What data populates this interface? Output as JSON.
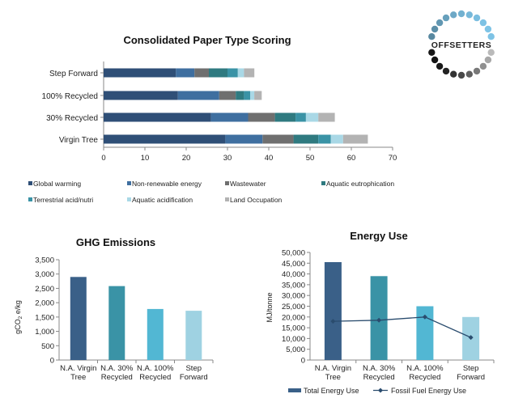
{
  "logo": {
    "text": "OFFSETTERS"
  },
  "chart_data": [
    {
      "type": "bar",
      "orientation": "horizontal",
      "stacked": true,
      "title": "Consolidated Paper Type Scoring",
      "categories": [
        "Step Forward",
        "100% Recycled",
        "30% Recycled",
        "Virgin Tree"
      ],
      "xlim": [
        0,
        70
      ],
      "xticks": [
        "0",
        "10",
        "20",
        "30",
        "40",
        "50",
        "60",
        "70"
      ],
      "grid": false,
      "legend": "bottom",
      "series": [
        {
          "name": "Global warming",
          "color": "#2f4f77",
          "values": [
            17.5,
            18,
            26,
            29.5
          ]
        },
        {
          "name": "Non-renewable energy",
          "color": "#3f6fa0",
          "values": [
            4.5,
            10,
            9,
            9
          ]
        },
        {
          "name": "Wastewater",
          "color": "#6f6f6f",
          "values": [
            3.5,
            4,
            6.5,
            7.5
          ]
        },
        {
          "name": "Aquatic eutrophication",
          "color": "#2f7a80",
          "values": [
            4.5,
            2,
            5,
            6
          ]
        },
        {
          "name": "Terrestrial acid/nutri",
          "color": "#3a93a6",
          "values": [
            2.5,
            1.5,
            2.5,
            3
          ]
        },
        {
          "name": "Aquatic acidification",
          "color": "#a9d8e6",
          "values": [
            1.5,
            1,
            3,
            3
          ]
        },
        {
          "name": "Land Occupation",
          "color": "#b3b3b3",
          "values": [
            2.5,
            1.8,
            4,
            6
          ]
        }
      ]
    },
    {
      "type": "bar",
      "title": "GHG Emissions",
      "ylabel_main": "gCO",
      "ylabel_sub": "2",
      "ylabel_tail": " e/kg",
      "categories": [
        [
          "N.A. Virgin",
          "Tree"
        ],
        [
          "N.A. 30%",
          "Recycled"
        ],
        [
          "N.A. 100%",
          "Recycled"
        ],
        [
          "Step",
          "Forward"
        ]
      ],
      "values": [
        2900,
        2580,
        1780,
        1720
      ],
      "colors": [
        "#3a6088",
        "#3a93a6",
        "#52b7d3",
        "#9fd2e2"
      ],
      "ylim": [
        0,
        3500
      ],
      "yticks": [
        "0",
        "500",
        "1,000",
        "1,500",
        "2,000",
        "2,500",
        "3,000",
        "3,500"
      ],
      "grid": false
    },
    {
      "type": "bar",
      "title": "Energy Use",
      "ylabel": "MJ/tonne",
      "categories": [
        [
          "N.A. Virgin",
          "Tree"
        ],
        [
          "N.A. 30%",
          "Recycled"
        ],
        [
          "N.A. 100%",
          "Recycled"
        ],
        [
          "Step",
          "Forward"
        ]
      ],
      "ylim": [
        0,
        50000
      ],
      "yticks": [
        "0",
        "5,000",
        "10,000",
        "15,000",
        "20,000",
        "25,000",
        "30,000",
        "35,000",
        "40,000",
        "45,000",
        "50,000"
      ],
      "grid": false,
      "legend": "bottom",
      "series": [
        {
          "name": "Total Energy Use",
          "kind": "bar",
          "values": [
            45500,
            39000,
            25000,
            20000
          ],
          "colors": [
            "#3a6088",
            "#3a93a6",
            "#52b7d3",
            "#9fd2e2"
          ],
          "legend_color": "#3a6088"
        },
        {
          "name": "Fossil Fuel Energy Use",
          "kind": "line",
          "color": "#2a4c6e",
          "values": [
            18000,
            18500,
            20000,
            10500
          ]
        }
      ]
    }
  ]
}
